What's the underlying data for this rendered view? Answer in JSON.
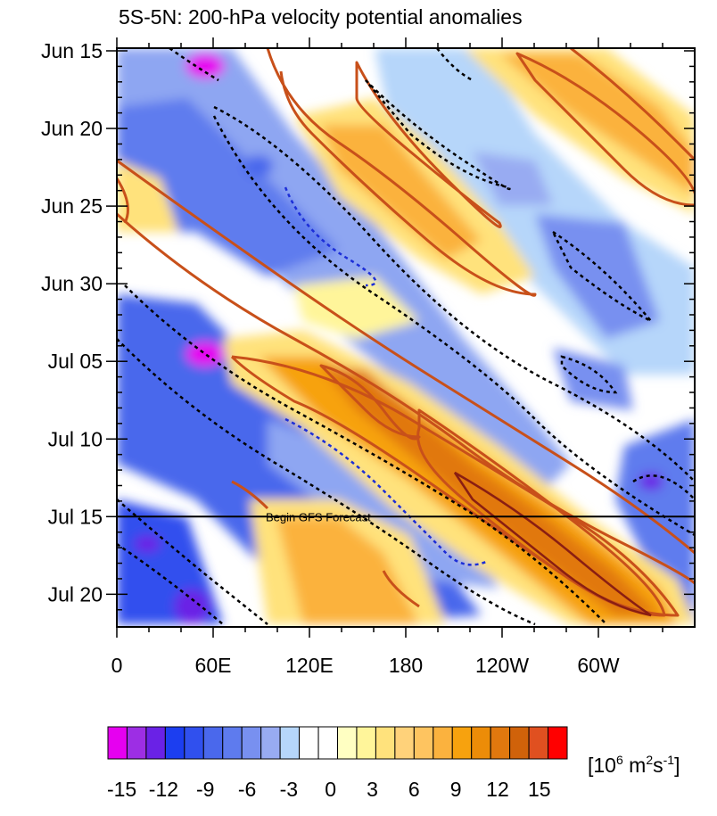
{
  "chart_data": {
    "type": "heatmap",
    "title": "5S-5N: 200-hPa velocity potential anomalies",
    "x_tick_labels": [
      "0",
      "60E",
      "120E",
      "180",
      "120W",
      "60W"
    ],
    "x_ticks_deg": [
      0,
      60,
      120,
      180,
      240,
      300
    ],
    "x_range_deg": [
      0,
      360
    ],
    "y_tick_labels": [
      "Jun 15",
      "Jun 20",
      "Jun 25",
      "Jun 30",
      "Jul 05",
      "Jul 10",
      "Jul 15",
      "Jul 20"
    ],
    "y_ticks_day": [
      0,
      5,
      10,
      15,
      20,
      25,
      30,
      35
    ],
    "y_range_day": [
      0,
      36
    ],
    "forecast_line_day": 30,
    "forecast_label": "Begin GFS Forecast",
    "colorbar": {
      "levels": [
        -16,
        -15,
        -14,
        -13,
        -12,
        -11,
        -10,
        -9,
        -8,
        -7,
        -6,
        -5,
        -4,
        -3,
        -2,
        -1,
        0,
        1,
        2,
        3,
        4,
        5,
        6,
        7,
        8,
        9,
        10,
        11,
        12,
        13,
        14,
        15,
        16
      ],
      "colors": [
        "#e600f0",
        "#9d2ee4",
        "#6a22e6",
        "#1c3ef0",
        "#3050ee",
        "#4a68ec",
        "#5e7bee",
        "#7890f0",
        "#98abf2",
        "#b6d6fa",
        "#ffffff",
        "#ffffff",
        "#ffffc2",
        "#fff59a",
        "#ffe27c",
        "#ffd27a",
        "#fec460",
        "#fbb23e",
        "#f7a20e",
        "#ec8c08",
        "#e1780e",
        "#d0620a",
        "#e05020",
        "#ff0000"
      ],
      "labels": [
        "-15",
        "-12",
        "-9",
        "-6",
        "-3",
        "0",
        "3",
        "6",
        "9",
        "12",
        "15"
      ],
      "label_values": [
        -15,
        -12,
        -9,
        -6,
        -3,
        0,
        3,
        6,
        9,
        12,
        15
      ],
      "units_prefix": "[10",
      "units_exp1": "6",
      "units_mid": " m",
      "units_exp2": "2",
      "units_mid2": "s",
      "units_exp3": "-1",
      "units_suffix": "]"
    },
    "propagation_bands": [
      {
        "sign": "positive",
        "lon_start": 150,
        "day_start": 3,
        "lon_end": 220,
        "day_end": 12
      },
      {
        "sign": "positive",
        "lon_start": 260,
        "day_start": 0,
        "lon_end": 360,
        "day_end": 9
      },
      {
        "sign": "positive",
        "lon_start": 90,
        "day_start": 18,
        "lon_end": 340,
        "day_end": 36
      },
      {
        "sign": "negative",
        "lon_start": 40,
        "day_start": 0,
        "lon_end": 60,
        "day_start2": 3
      },
      {
        "sign": "negative",
        "lon_start": 50,
        "day_start": 4,
        "lon_end": 230,
        "day_end": 29
      },
      {
        "sign": "negative",
        "lon_start": 150,
        "day_start": 0,
        "lon_end": 230,
        "day_end": 8
      }
    ]
  }
}
